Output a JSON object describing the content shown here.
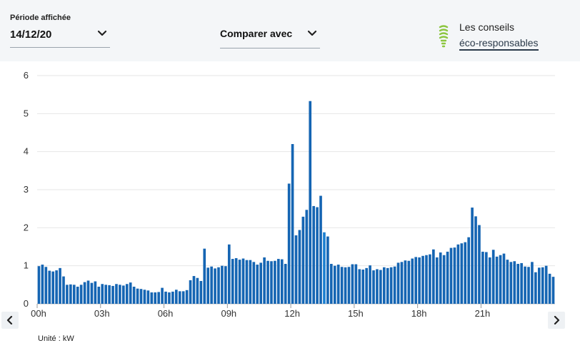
{
  "header": {
    "period_label": "Période affichée",
    "period_value": "14/12/20",
    "compare_label": "Comparer avec",
    "tips_title": "Les conseils",
    "tips_link": "éco-responsables",
    "bulb_color": "#8cc63f"
  },
  "chart_data": {
    "type": "bar",
    "ylim": [
      0,
      6
    ],
    "yticks": [
      0,
      1,
      2,
      3,
      4,
      5,
      6
    ],
    "grid": true,
    "bar_color": "#1565b3",
    "highlight_color": "#1a7fd0",
    "highlight_index": 81,
    "x_tick_labels": [
      "00h",
      "03h",
      "06h",
      "09h",
      "12h",
      "15h",
      "18h",
      "21h"
    ],
    "x_tick_interval_hours": 3,
    "interval_minutes": 10,
    "values": [
      0.99,
      1.03,
      0.97,
      0.87,
      0.85,
      0.88,
      0.94,
      0.72,
      0.5,
      0.51,
      0.5,
      0.45,
      0.5,
      0.57,
      0.61,
      0.55,
      0.59,
      0.45,
      0.52,
      0.5,
      0.49,
      0.47,
      0.52,
      0.5,
      0.48,
      0.52,
      0.56,
      0.45,
      0.4,
      0.39,
      0.37,
      0.35,
      0.3,
      0.3,
      0.31,
      0.42,
      0.32,
      0.3,
      0.32,
      0.37,
      0.33,
      0.33,
      0.36,
      0.62,
      0.73,
      0.68,
      0.6,
      1.45,
      0.95,
      0.98,
      0.93,
      0.96,
      1.0,
      0.99,
      1.56,
      1.18,
      1.2,
      1.16,
      1.19,
      1.15,
      1.15,
      1.1,
      1.03,
      1.08,
      1.22,
      1.13,
      1.12,
      1.13,
      1.18,
      1.17,
      1.05,
      3.16,
      4.2,
      1.8,
      1.94,
      2.29,
      2.47,
      5.33,
      2.57,
      2.54,
      2.84,
      1.88,
      1.77,
      1.05,
      1.0,
      1.03,
      0.97,
      0.96,
      0.97,
      1.04,
      1.04,
      0.91,
      0.9,
      0.94,
      1.01,
      0.88,
      0.91,
      0.89,
      0.96,
      0.94,
      0.96,
      0.98,
      1.08,
      1.1,
      1.14,
      1.13,
      1.19,
      1.23,
      1.22,
      1.26,
      1.28,
      1.3,
      1.43,
      1.22,
      1.35,
      1.28,
      1.37,
      1.47,
      1.48,
      1.56,
      1.59,
      1.62,
      1.75,
      2.53,
      2.3,
      2.07,
      1.37,
      1.36,
      1.22,
      1.42,
      1.24,
      1.28,
      1.32,
      1.16,
      1.1,
      1.12,
      1.05,
      1.07,
      0.98,
      0.97,
      1.1,
      0.83,
      0.95,
      0.96,
      1.0,
      0.79,
      0.71
    ]
  },
  "unit_label": "Unité : kW"
}
